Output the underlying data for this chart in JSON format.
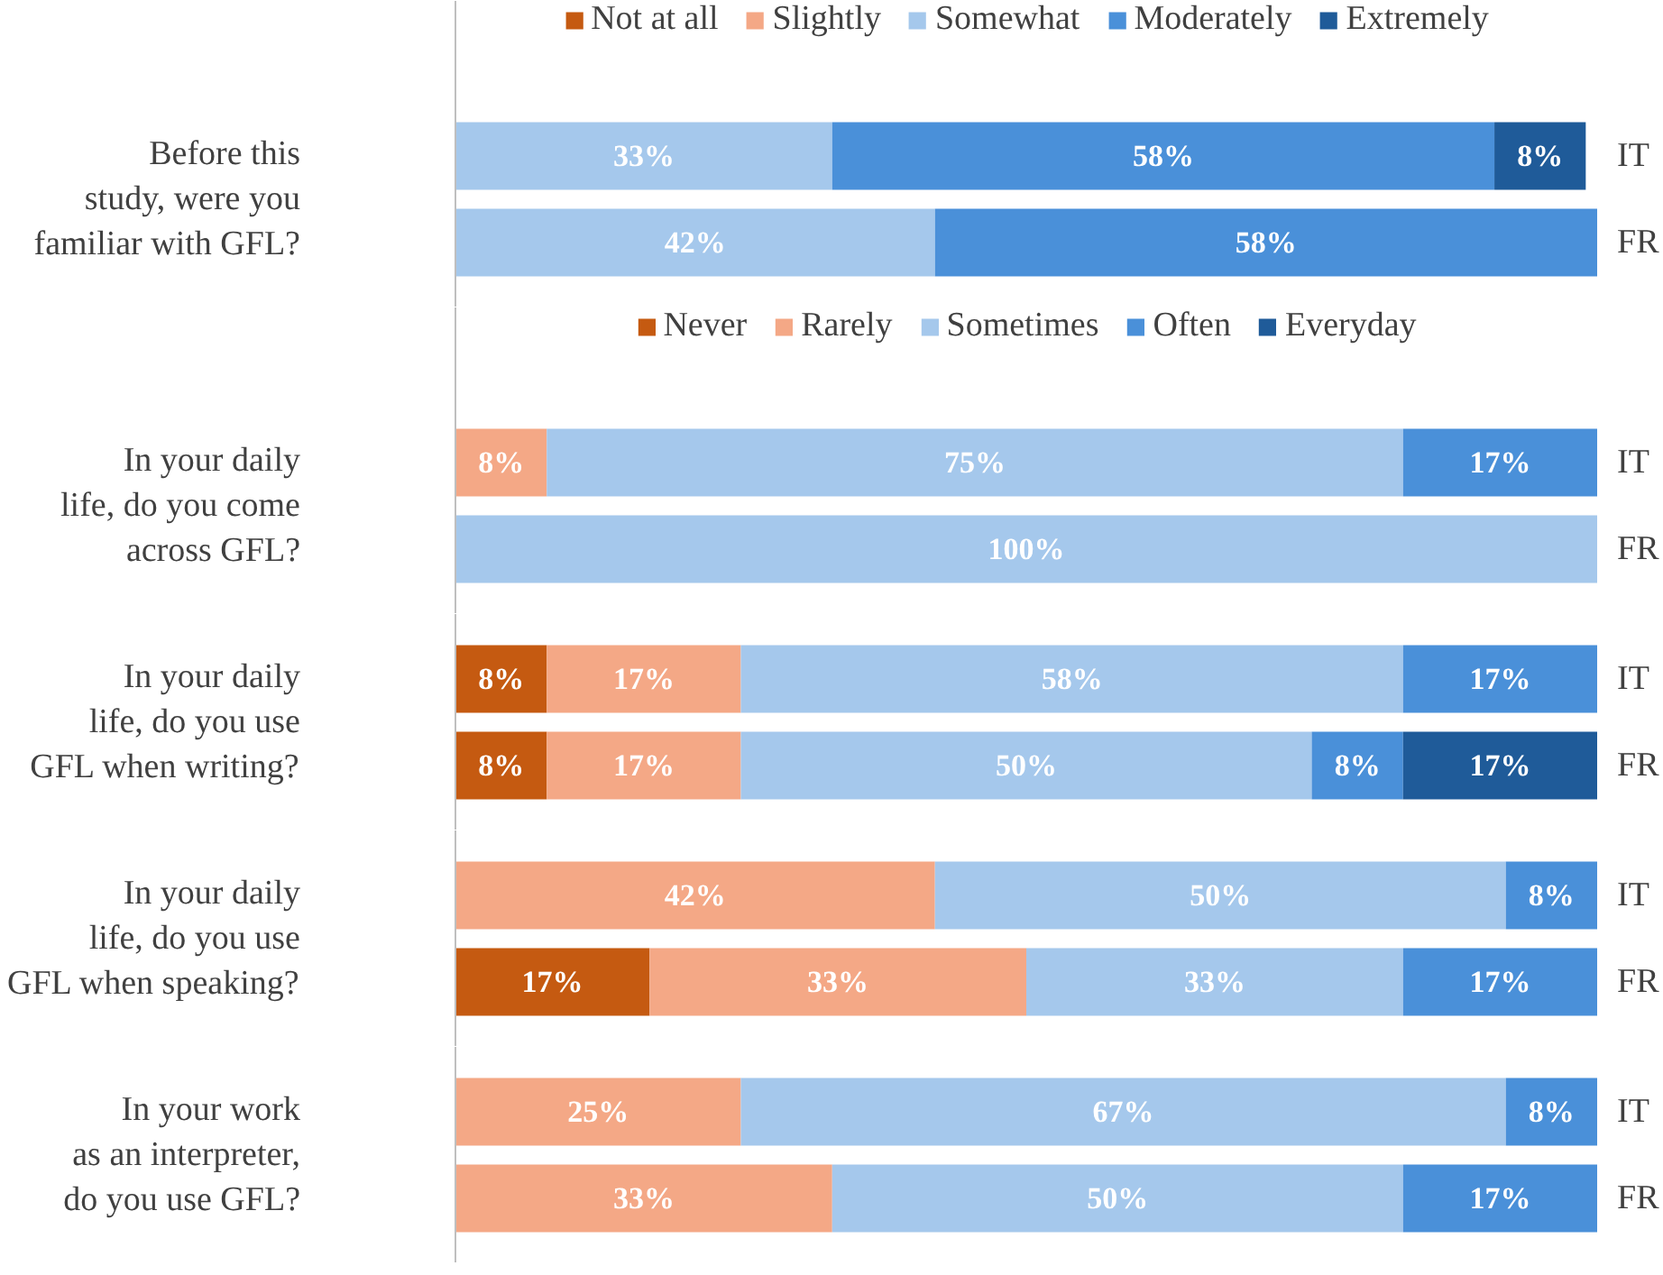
{
  "chart_data": [
    {
      "type": "bar",
      "orientation": "horizontal",
      "stacked": true,
      "ylabel": "Before this\nstudy, were you\nfamiliar with GFL?",
      "categories": [
        "IT",
        "FR"
      ],
      "xlim": [
        0,
        100
      ],
      "legend": "top",
      "tick_labels": "y",
      "series": [
        {
          "name": "Not at all",
          "color": "#c55a11",
          "values": [
            null,
            null
          ],
          "value_labels": [
            null,
            null
          ]
        },
        {
          "name": "Slightly",
          "color": "#f4a886",
          "values": [
            null,
            null
          ],
          "value_labels": [
            null,
            null
          ]
        },
        {
          "name": "Somewhat",
          "color": "#a5c8ec",
          "values": [
            33,
            42
          ],
          "value_labels": [
            "33%",
            "42%"
          ]
        },
        {
          "name": "Moderately",
          "color": "#4a90d9",
          "values": [
            58,
            58
          ],
          "value_labels": [
            "58%",
            "58%"
          ]
        },
        {
          "name": "Extremely",
          "color": "#1f5b99",
          "values": [
            8,
            null
          ],
          "value_labels": [
            "8%",
            null
          ]
        }
      ]
    },
    {
      "type": "bar",
      "orientation": "horizontal",
      "stacked": true,
      "ylabel": "In your daily\nlife, do you come\nacross GFL?",
      "categories": [
        "IT",
        "FR"
      ],
      "xlim": [
        0,
        100
      ],
      "legend": "top",
      "tick_labels": "y",
      "series": [
        {
          "name": "Never",
          "color": "#c55a11",
          "values": [
            null,
            null
          ],
          "value_labels": [
            null,
            null
          ]
        },
        {
          "name": "Rarely",
          "color": "#f4a886",
          "values": [
            8,
            null
          ],
          "value_labels": [
            "8%",
            null
          ]
        },
        {
          "name": "Sometimes",
          "color": "#a5c8ec",
          "values": [
            75,
            100
          ],
          "value_labels": [
            "75%",
            "100%"
          ]
        },
        {
          "name": "Often",
          "color": "#4a90d9",
          "values": [
            17,
            null
          ],
          "value_labels": [
            "17%",
            null
          ]
        },
        {
          "name": "Everyday",
          "color": "#1f5b99",
          "values": [
            null,
            null
          ],
          "value_labels": [
            null,
            null
          ]
        }
      ]
    },
    {
      "type": "bar",
      "orientation": "horizontal",
      "stacked": true,
      "ylabel": "In your daily\nlife, do you use\nGFL when writing?",
      "categories": [
        "IT",
        "FR"
      ],
      "xlim": [
        0,
        100
      ],
      "tick_labels": "y",
      "series": [
        {
          "color": "#c55a11",
          "values": [
            8,
            8
          ],
          "value_labels": [
            "8%",
            "8%"
          ]
        },
        {
          "color": "#f4a886",
          "values": [
            17,
            17
          ],
          "value_labels": [
            "17%",
            "17%"
          ]
        },
        {
          "color": "#a5c8ec",
          "values": [
            58,
            50
          ],
          "value_labels": [
            "58%",
            "50%"
          ]
        },
        {
          "color": "#4a90d9",
          "values": [
            17,
            8
          ],
          "value_labels": [
            "17%",
            "8%"
          ]
        },
        {
          "color": "#1f5b99",
          "values": [
            null,
            17
          ],
          "value_labels": [
            null,
            "17%"
          ]
        }
      ]
    },
    {
      "type": "bar",
      "orientation": "horizontal",
      "stacked": true,
      "ylabel": "In your daily\nlife, do you use\nGFL when speaking?",
      "categories": [
        "IT",
        "FR"
      ],
      "xlim": [
        0,
        100
      ],
      "tick_labels": "y",
      "series": [
        {
          "color": "#c55a11",
          "values": [
            null,
            17
          ],
          "value_labels": [
            null,
            "17%"
          ]
        },
        {
          "color": "#f4a886",
          "values": [
            42,
            33
          ],
          "value_labels": [
            "42%",
            "33%"
          ]
        },
        {
          "color": "#a5c8ec",
          "values": [
            50,
            33
          ],
          "value_labels": [
            "50%",
            "33%"
          ]
        },
        {
          "color": "#4a90d9",
          "values": [
            8,
            17
          ],
          "value_labels": [
            "8%",
            "17%"
          ]
        },
        {
          "color": "#1f5b99",
          "values": [
            null,
            null
          ],
          "value_labels": [
            null,
            null
          ]
        }
      ]
    },
    {
      "type": "bar",
      "orientation": "horizontal",
      "stacked": true,
      "ylabel": "In your work\nas an interpreter,\ndo you use GFL?",
      "categories": [
        "IT",
        "FR"
      ],
      "xlim": [
        0,
        100
      ],
      "tick_labels": "y",
      "series": [
        {
          "color": "#c55a11",
          "values": [
            null,
            null
          ],
          "value_labels": [
            null,
            null
          ]
        },
        {
          "color": "#f4a886",
          "values": [
            25,
            33
          ],
          "value_labels": [
            "25%",
            "33%"
          ]
        },
        {
          "color": "#a5c8ec",
          "values": [
            67,
            50
          ],
          "value_labels": [
            "67%",
            "50%"
          ]
        },
        {
          "color": "#4a90d9",
          "values": [
            8,
            17
          ],
          "value_labels": [
            "8%",
            "17%"
          ]
        },
        {
          "color": "#1f5b99",
          "values": [
            null,
            null
          ],
          "value_labels": [
            null,
            null
          ]
        }
      ]
    }
  ]
}
